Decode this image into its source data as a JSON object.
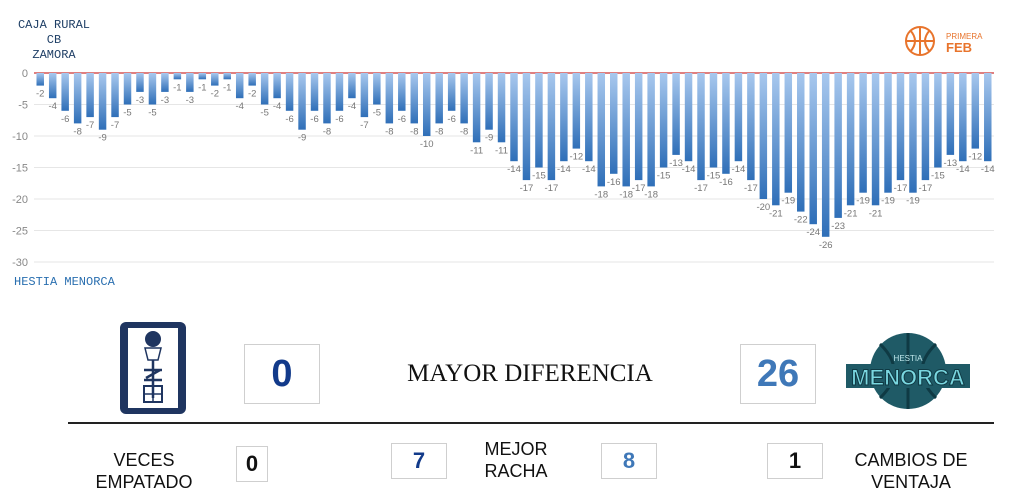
{
  "header": {
    "team_top_line1": "CAJA RURAL CB",
    "team_top_line2": "ZAMORA",
    "team_bottom": "HESTIA MENORCA",
    "league_logo_text_top": "PRIMERA",
    "league_logo_text_bottom": "FEB"
  },
  "colors": {
    "bar_top": "#a8c8ee",
    "bar_bottom": "#2f6fb8",
    "zero_line": "#cc3333",
    "navy": "#123a8a",
    "light_blue": "#3f78b8",
    "orange": "#e8742c"
  },
  "chart_data": {
    "type": "bar",
    "title": "",
    "xlabel": "",
    "ylabel": "",
    "ylim": [
      -30,
      0
    ],
    "yticks": [
      0,
      -5,
      -10,
      -15,
      -20,
      -25,
      -30
    ],
    "grid": true,
    "values": [
      -2,
      -4,
      -6,
      -8,
      -7,
      -9,
      -7,
      -5,
      -3,
      -5,
      -3,
      -1,
      -3,
      -1,
      -2,
      -1,
      -4,
      -2,
      -5,
      -4,
      -6,
      -9,
      -6,
      -8,
      -6,
      -4,
      -7,
      -5,
      -8,
      -6,
      -8,
      -10,
      -8,
      -6,
      -8,
      -11,
      -9,
      -11,
      -14,
      -17,
      -15,
      -17,
      -14,
      -12,
      -14,
      -18,
      -16,
      -18,
      -17,
      -18,
      -15,
      -13,
      -14,
      -17,
      -15,
      -16,
      -14,
      -17,
      -20,
      -21,
      -19,
      -22,
      -24,
      -26,
      -23,
      -21,
      -19,
      -21,
      -19,
      -17,
      -19,
      -17,
      -15,
      -13,
      -14,
      -12,
      -14
    ]
  },
  "stats": {
    "mayor_diferencia_label": "MAYOR DIFERENCIA",
    "mayor_diferencia_home": "0",
    "mayor_diferencia_away": "26",
    "veces_empatado_label_1": "VECES",
    "veces_empatado_label_2": "EMPATADO",
    "veces_empatado_value": "0",
    "mejor_racha_label_1": "MEJOR",
    "mejor_racha_label_2": "RACHA",
    "mejor_racha_home": "7",
    "mejor_racha_away": "8",
    "cambios_label_1": "CAMBIOS DE",
    "cambios_label_2": "VENTAJA",
    "cambios_value": "1"
  },
  "logos": {
    "home_icon": "zamora-crest-icon",
    "away_icon": "menorca-basketball-crest-icon",
    "away_wordmark": "MENORCA",
    "away_wordmark_small": "HESTIA"
  }
}
